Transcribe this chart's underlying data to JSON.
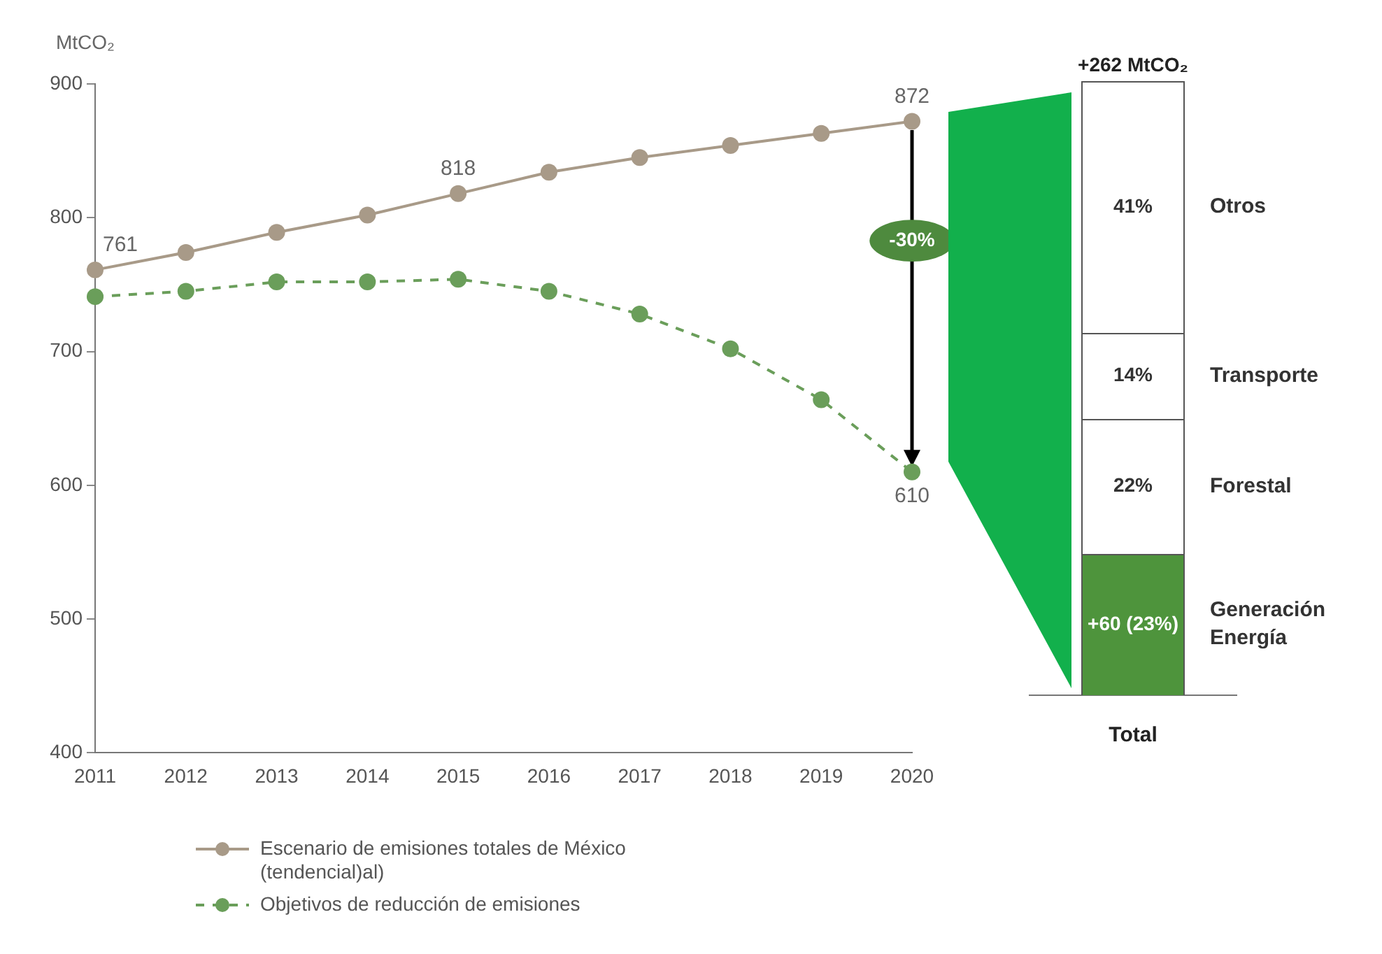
{
  "chart_data": [
    {
      "type": "line",
      "ylabel": "MtCO₂",
      "categories": [
        "2011",
        "2012",
        "2013",
        "2014",
        "2015",
        "2016",
        "2017",
        "2018",
        "2019",
        "2020"
      ],
      "series": [
        {
          "name": "Escenario de emisiones totales de México (tendencial)al)",
          "color": "#a89a88",
          "marker": "circle",
          "line_style": "solid",
          "values": [
            761,
            774,
            789,
            802,
            818,
            834,
            845,
            854,
            863,
            872
          ],
          "value_labels": [
            "761",
            null,
            null,
            null,
            "818",
            null,
            null,
            null,
            null,
            "872"
          ]
        },
        {
          "name": "Objetivos de reducción de emisiones",
          "color": "#6a9e5a",
          "marker": "circle",
          "line_style": "dashed",
          "values": [
            741,
            745,
            752,
            752,
            754,
            745,
            728,
            702,
            664,
            610
          ],
          "value_labels": [
            null,
            null,
            null,
            null,
            null,
            null,
            null,
            null,
            null,
            "610"
          ]
        }
      ],
      "ylim": [
        400,
        900
      ],
      "yticks": [
        400,
        500,
        600,
        700,
        800,
        900
      ],
      "grid": false,
      "legend": "bottom",
      "annotations": [
        "-30%"
      ]
    },
    {
      "type": "bar",
      "stacked": true,
      "title": "+262 MtCO₂",
      "categories": [
        "Total"
      ],
      "ylim": [
        0,
        100
      ],
      "tick_labels": "x",
      "series": [
        {
          "name": "Generación Energía",
          "color": "#4e943c",
          "values": [
            23
          ],
          "value_labels": [
            "+60 (23%)"
          ]
        },
        {
          "name": "Forestal",
          "color": "#ffffff",
          "values": [
            22
          ],
          "value_labels": [
            "22%"
          ]
        },
        {
          "name": "Transporte",
          "color": "#ffffff",
          "values": [
            14
          ],
          "value_labels": [
            "14%"
          ]
        },
        {
          "name": "Otros",
          "color": "#ffffff",
          "values": [
            41
          ],
          "value_labels": [
            "41%"
          ]
        }
      ]
    }
  ]
}
